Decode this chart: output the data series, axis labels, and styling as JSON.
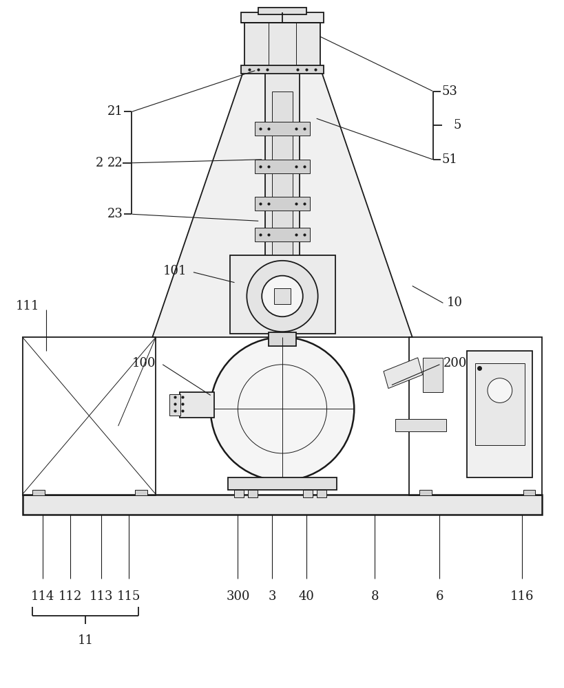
{
  "bg_color": "#ffffff",
  "line_color": "#1a1a1a",
  "lw": 1.3,
  "tlw": 0.7,
  "figsize": [
    8.2,
    10.0
  ],
  "dpi": 100,
  "fs": 13,
  "fs_small": 11
}
